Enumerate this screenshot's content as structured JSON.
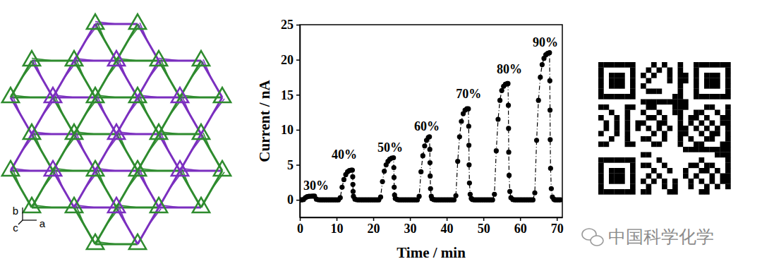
{
  "chart_data": {
    "type": "line",
    "x_label": "Time / min",
    "y_label": "Current / nA",
    "color": "#000000",
    "marker": "circle",
    "line_style": "dashdot",
    "xlim": [
      0,
      71.5
    ],
    "xticks": [
      0,
      10,
      20,
      30,
      40,
      50,
      60,
      70
    ],
    "ylim": [
      -2.5,
      25
    ],
    "yticks": [
      0,
      5,
      10,
      15,
      20,
      25
    ],
    "x": [
      0,
      0.5,
      1,
      1.5,
      2,
      2.5,
      3,
      3.5,
      4,
      4.5,
      5,
      5.5,
      6,
      6.5,
      7,
      7.5,
      8,
      8.5,
      9,
      9.5,
      10,
      10.5,
      11,
      11.5,
      12,
      12.5,
      13,
      13.5,
      14,
      14.3,
      14.4,
      14.45,
      14.5,
      14.6,
      15,
      15.5,
      16,
      16.5,
      17,
      17.5,
      18,
      18.5,
      19,
      19.5,
      20,
      20.5,
      21,
      21.5,
      22,
      22.5,
      23,
      23.5,
      24,
      24.5,
      25,
      25.5,
      25.6,
      25.65,
      25.7,
      25.8,
      26,
      26.5,
      27,
      27.5,
      28,
      28.5,
      29,
      29.5,
      30,
      30.5,
      31,
      31.5,
      32,
      32.5,
      33,
      33.5,
      34,
      34.5,
      35,
      35.3,
      35.4,
      35.45,
      35.5,
      35.6,
      35.8,
      36,
      36.5,
      37,
      37.5,
      38,
      38.5,
      39,
      39.5,
      40,
      40.5,
      41,
      41.5,
      42,
      42.5,
      43,
      43.5,
      44,
      44.5,
      45,
      45.5,
      45.9,
      46,
      46.05,
      46.1,
      46.2,
      46.4,
      46.7,
      47,
      47.5,
      48,
      48.5,
      49,
      49.5,
      50,
      50.5,
      51,
      51.5,
      52,
      52.5,
      53,
      53.5,
      54,
      54.5,
      55,
      55.5,
      56,
      56.5,
      56.7,
      56.8,
      56.85,
      56.9,
      57,
      57.2,
      57.5,
      58,
      58.5,
      59,
      59.5,
      60,
      60.5,
      61,
      61.5,
      62,
      62.5,
      63,
      63.5,
      64,
      64.5,
      65,
      65.5,
      66,
      66.5,
      67,
      67.5,
      68,
      68.1,
      68.15,
      68.2,
      68.3,
      68.5,
      68.8,
      69.2,
      69.5,
      70,
      70.5,
      71
    ],
    "values": [
      0,
      0,
      0.05,
      0.3,
      0.45,
      0.5,
      0.52,
      0.53,
      0.53,
      0.1,
      0.02,
      0,
      0,
      0,
      0,
      0,
      0,
      0,
      0,
      0,
      0,
      0,
      0.3,
      1.8,
      2.9,
      3.6,
      4.0,
      4.2,
      4.25,
      4.25,
      3.3,
      2.2,
      1.2,
      0.5,
      0.1,
      0.02,
      0,
      0,
      0,
      0,
      0,
      0,
      0,
      0,
      0,
      0,
      0,
      0,
      0.4,
      2.6,
      4.1,
      5.0,
      5.5,
      5.8,
      5.95,
      6.0,
      4.6,
      3.2,
      1.8,
      0.7,
      0.2,
      0.05,
      0,
      0,
      0,
      0,
      0,
      0,
      0,
      0,
      0,
      0,
      0,
      0.5,
      4.0,
      6.3,
      7.7,
      8.5,
      8.9,
      9.0,
      7.2,
      5.3,
      3.4,
      1.6,
      0.5,
      0.15,
      0.03,
      0,
      0,
      0,
      0,
      0,
      0,
      0,
      0,
      0,
      0,
      0,
      0.6,
      5.5,
      9.0,
      11.2,
      12.3,
      12.8,
      13.0,
      13.0,
      10.5,
      7.8,
      5.0,
      2.4,
      0.8,
      0.2,
      0.05,
      0,
      0,
      0,
      0,
      0,
      0,
      0,
      0,
      0,
      0,
      0,
      0.8,
      7.0,
      11.5,
      14.2,
      15.6,
      16.2,
      16.5,
      16.6,
      16.6,
      13.5,
      10.2,
      6.8,
      3.5,
      1.2,
      0.3,
      0.05,
      0,
      0,
      0,
      0,
      0,
      0,
      0,
      0,
      0,
      0,
      0,
      1.0,
      8.5,
      14.2,
      17.5,
      19.3,
      20.2,
      20.7,
      20.9,
      21.0,
      17.0,
      12.8,
      8.6,
      4.5,
      1.6,
      0.4,
      0.08,
      0,
      0,
      0,
      0
    ],
    "annotations": [
      {
        "text": "30%",
        "x": 4.4,
        "y": 1.8
      },
      {
        "text": "40%",
        "x": 12.1,
        "y": 6.25
      },
      {
        "text": "50%",
        "x": 24.6,
        "y": 7.3
      },
      {
        "text": "60%",
        "x": 34.6,
        "y": 10.3
      },
      {
        "text": "70%",
        "x": 46.0,
        "y": 14.9
      },
      {
        "text": "80%",
        "x": 57.1,
        "y": 18.5
      },
      {
        "text": "90%",
        "x": 66.9,
        "y": 22.3
      }
    ]
  },
  "structure": {
    "axis_labels": [
      "b",
      "a",
      "c"
    ]
  },
  "watermark": "中国科学化学"
}
